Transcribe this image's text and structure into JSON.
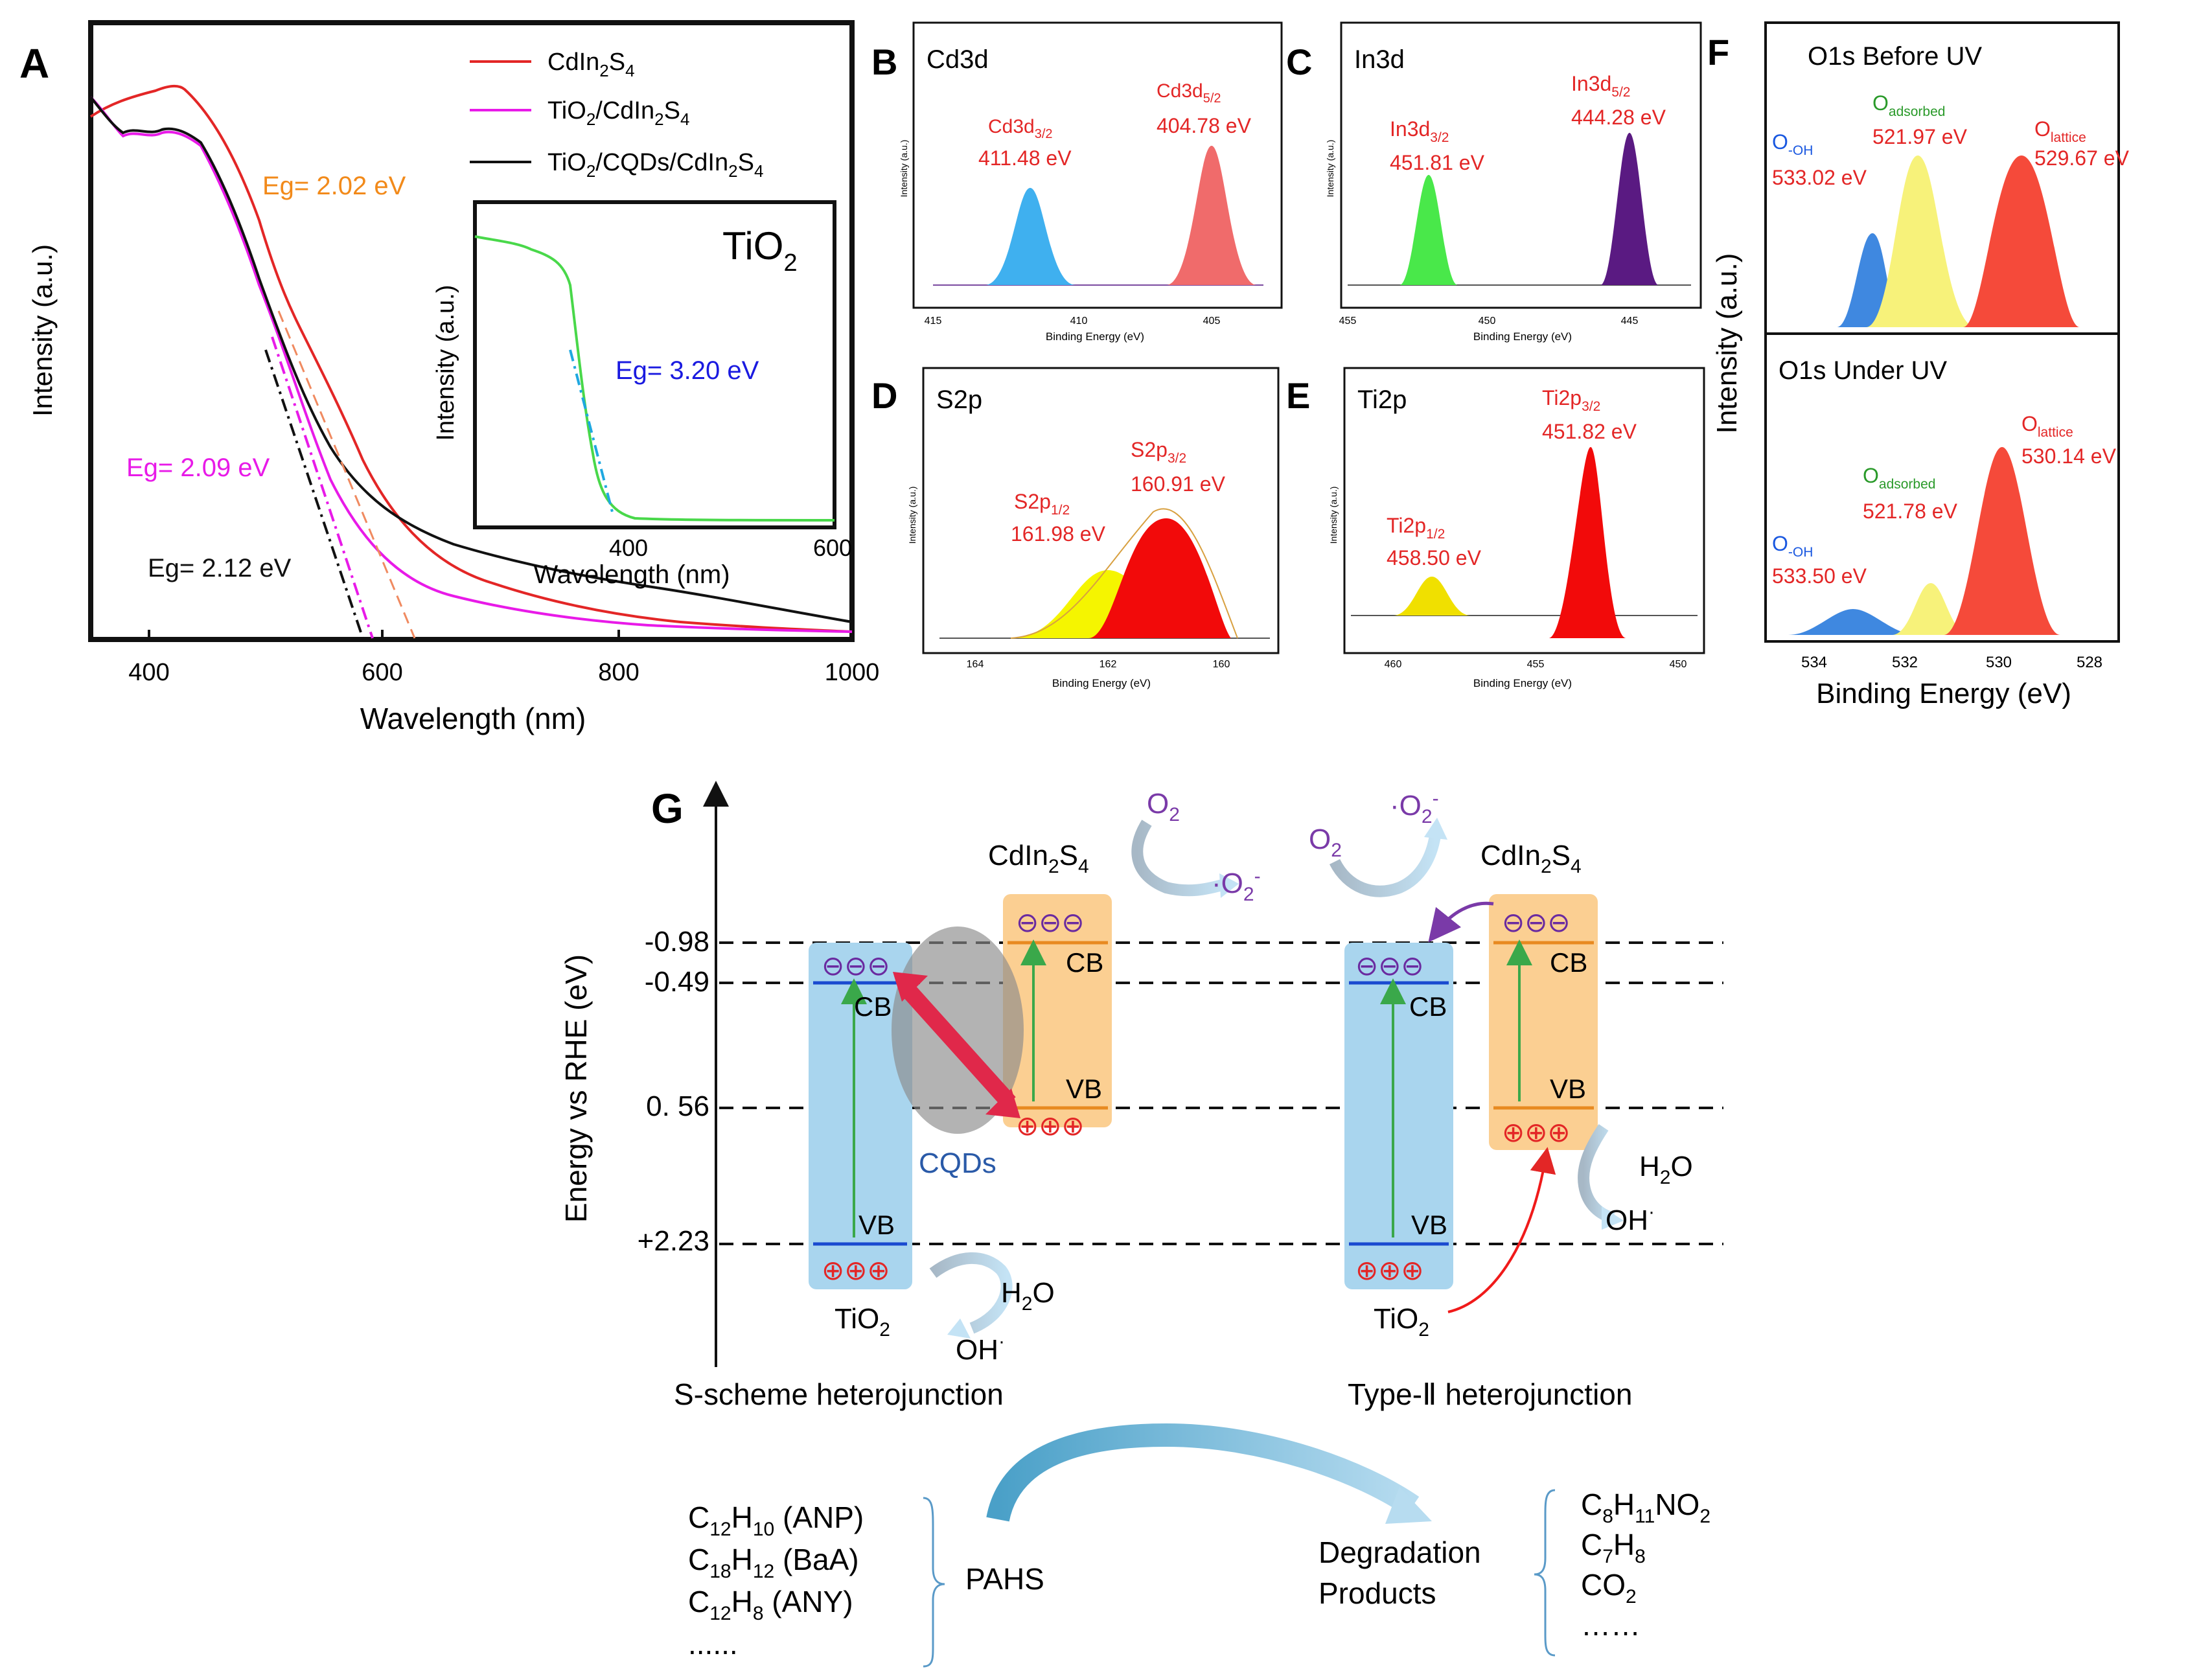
{
  "panels": {
    "A": {
      "letter": "A",
      "legend": [
        {
          "base": "CdIn",
          "s1": "2",
          "m": "S",
          "s2": "4",
          "color": "#e32626"
        },
        {
          "pre": "TiO",
          "ps": "2",
          "base": "/CdIn",
          "s1": "2",
          "m": "S",
          "s2": "4",
          "color": "#e81ae8"
        },
        {
          "pre": "TiO",
          "ps": "2",
          "base": "/CQDs/CdIn",
          "s1": "2",
          "m": "S",
          "s2": "4",
          "color": "#111111"
        }
      ],
      "eg_cdins": "Eg= 2.02 eV",
      "eg_tio2cdins": "Eg= 2.09 eV",
      "eg_ternary": "Eg= 2.12 eV",
      "xlabel": "Wavelength (nm)",
      "ylabel": "Intensity (a.u.)",
      "xticks": [
        "400",
        "600",
        "800",
        "1000"
      ],
      "inset": {
        "title_base": "TiO",
        "title_sub": "2",
        "eg": "Eg= 3.20 eV",
        "xlabel": "Wavelength (nm)",
        "ylabel": "Intensity (a.u.)",
        "xticks": [
          "400",
          "600"
        ]
      }
    },
    "B": {
      "letter": "B",
      "title": "Cd3d",
      "peak1": {
        "label": "Cd3d",
        "sub": "3/2",
        "value": "411.48 eV"
      },
      "peak2": {
        "label": "Cd3d",
        "sub": "5/2",
        "value": "404.78 eV"
      },
      "xticks": [
        "415",
        "410",
        "405"
      ],
      "xlabel": "Binding Energy (eV)",
      "ylabel": "Intensity (a.u.)"
    },
    "C": {
      "letter": "C",
      "title": "In3d",
      "peak1": {
        "label": "In3d",
        "sub": "3/2",
        "value": "451.81 eV"
      },
      "peak2": {
        "label": "In3d",
        "sub": "5/2",
        "value": "444.28 eV"
      },
      "xticks": [
        "455",
        "450",
        "445"
      ],
      "xlabel": "Binding Energy (eV)",
      "ylabel": "Intensity (a.u.)"
    },
    "D": {
      "letter": "D",
      "title": "S2p",
      "peak1": {
        "label": "S2p",
        "sub": "1/2",
        "value": "161.98 eV"
      },
      "peak2": {
        "label": "S2p",
        "sub": "3/2",
        "value": "160.91 eV"
      },
      "xticks": [
        "164",
        "162",
        "160"
      ],
      "xlabel": "Binding Energy (eV)",
      "ylabel": "Intensity (a.u.)"
    },
    "E": {
      "letter": "E",
      "title": "Ti2p",
      "peak1": {
        "label": "Ti2p",
        "sub": "1/2",
        "value": "458.50 eV"
      },
      "peak2": {
        "label": "Ti2p",
        "sub": "3/2",
        "value": "451.82 eV"
      },
      "xticks": [
        "460",
        "455",
        "450"
      ],
      "xlabel": "Binding Energy (eV)",
      "ylabel": "Intensity (a.u.)"
    },
    "F": {
      "letter": "F",
      "title_top": "O1s Before UV",
      "title_bottom": "O1s Under UV",
      "top": {
        "oh": {
          "label": "O",
          "sub": "-OH",
          "value": "533.02 eV"
        },
        "ads": {
          "label": "O",
          "sub": "adsorbed",
          "value": "521.97 eV"
        },
        "lat": {
          "label": "O",
          "sub": "lattice",
          "value": "529.67 eV"
        }
      },
      "bottom": {
        "oh": {
          "label": "O",
          "sub": "-OH",
          "value": "533.50 eV"
        },
        "ads": {
          "label": "O",
          "sub": "adsorbed",
          "value": "521.78 eV"
        },
        "lat": {
          "label": "O",
          "sub": "lattice",
          "value": "530.14 eV"
        }
      },
      "xticks": [
        "534",
        "532",
        "530",
        "528"
      ],
      "xlabel": "Binding Energy (eV)",
      "ylabel": "Intensity (a.u.)"
    },
    "G": {
      "letter": "G",
      "ylabel": "Energy vs RHE (eV)",
      "levels": [
        "-0.98",
        "-0.49",
        "0. 56",
        "+2.23"
      ],
      "left_caption": "S-scheme heterojunction",
      "right_caption": "Type-Ⅱ heterojunction",
      "cb": "CB",
      "vb": "VB",
      "cqds": "CQDs",
      "electrons": "⊖⊖⊖",
      "holes": "⊕⊕⊕",
      "tio2": {
        "base": "TiO",
        "sub": "2"
      },
      "cdins": {
        "base": "CdIn",
        "s1": "2",
        "m": "S",
        "s2": "4"
      },
      "o2": {
        "base": "O",
        "sub": "2"
      },
      "o2rad": {
        "dot": "·",
        "base": "O",
        "sub": "2",
        "sup": "-"
      },
      "h2o": {
        "a": "H",
        "sub": "2",
        "b": "O"
      },
      "oh": {
        "base": "OH",
        "sup": "·"
      }
    }
  },
  "bottom": {
    "pahs": "PAHS",
    "reactants": [
      {
        "parts": [
          [
            "C",
            ""
          ],
          [
            "12",
            "sub"
          ],
          [
            "H",
            ""
          ],
          [
            "10",
            "sub"
          ],
          [
            " (ANP)",
            ""
          ]
        ]
      },
      {
        "parts": [
          [
            "C",
            ""
          ],
          [
            "18",
            "sub"
          ],
          [
            "H",
            ""
          ],
          [
            "12",
            "sub"
          ],
          [
            " (BaA)",
            ""
          ]
        ]
      },
      {
        "parts": [
          [
            "C",
            ""
          ],
          [
            "12",
            "sub"
          ],
          [
            "H",
            ""
          ],
          [
            "8",
            "sub"
          ],
          [
            " (ANY)",
            ""
          ]
        ]
      },
      {
        "parts": [
          [
            "......",
            ""
          ]
        ]
      }
    ],
    "degradation_line1": "Degradation",
    "degradation_line2": "Products",
    "products": [
      {
        "parts": [
          [
            "C",
            ""
          ],
          [
            "8",
            "sub"
          ],
          [
            "H",
            ""
          ],
          [
            "11",
            "sub"
          ],
          [
            "NO",
            ""
          ],
          [
            "2",
            "sub"
          ]
        ]
      },
      {
        "parts": [
          [
            "C",
            ""
          ],
          [
            "7",
            "sub"
          ],
          [
            "H",
            ""
          ],
          [
            "8",
            "sub"
          ]
        ]
      },
      {
        "parts": [
          [
            "CO",
            ""
          ],
          [
            "2",
            "sub"
          ]
        ]
      },
      {
        "parts": [
          [
            "……",
            ""
          ]
        ]
      }
    ]
  },
  "colors": {
    "red": "#e32626",
    "magenta": "#e81ae8",
    "orange": "#f28a1a",
    "blue_text": "#1a1ae0",
    "tio2_box": "#a9d5ee",
    "cdins_box": "#fbcf92",
    "purple": "#7a3aa8"
  }
}
